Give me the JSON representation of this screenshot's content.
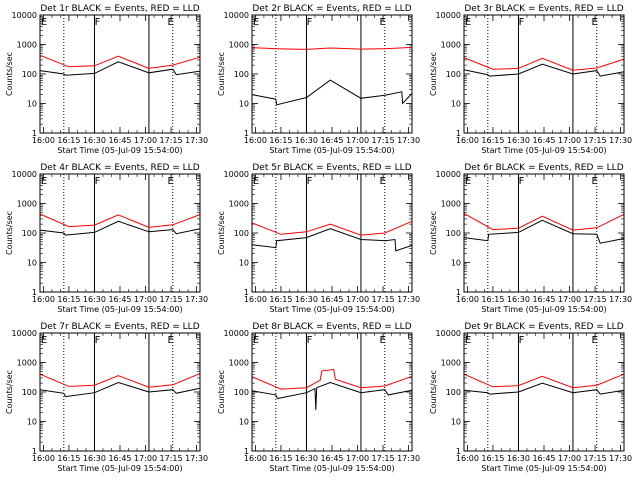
{
  "chart_data": {
    "type": "line",
    "layout": "3x3 grid of panels",
    "x_tick_labels": [
      "16:00",
      "16:15",
      "16:30",
      "16:45",
      "17:00",
      "17:15",
      "17:30"
    ],
    "x_tick_minutes": [
      0,
      15,
      30,
      45,
      60,
      75,
      90
    ],
    "xlabel": "Start Time (05-Jul-09 15:54:00)",
    "ylabel": "Counts/sec",
    "y_scale": "log",
    "ylim": [
      1,
      10000
    ],
    "y_tick_labels": [
      "1",
      "10",
      "100",
      "1000",
      "10000"
    ],
    "x_unit": "minutes after 16:00",
    "xlim": [
      -2,
      92
    ],
    "colors": {
      "events": "#000000",
      "lld": "#ff0000",
      "axis": "#000000",
      "background": "#ffffff"
    },
    "series_names": [
      "BLACK = Events",
      "RED = LLD"
    ],
    "flags": [
      {
        "text": "E",
        "minute": -2
      },
      {
        "text": "F",
        "minute": 30
      },
      {
        "text": "E",
        "minute": 73
      }
    ],
    "solid_vlines_minutes": [
      30,
      62
    ],
    "dotted_vlines_minutes": [
      12,
      76
    ],
    "panels": [
      {
        "title": "Det 1r BLACK = Events, RED = LLD",
        "series": [
          {
            "name": "Events",
            "color": "#000000",
            "x": [
              -2,
              12,
              13,
              30,
              44,
              62,
              76,
              78,
              92
            ],
            "y": [
              130,
              100,
              90,
              105,
              260,
              110,
              145,
              95,
              125
            ]
          },
          {
            "name": "LLD",
            "color": "#ff0000",
            "x": [
              -2,
              15,
              30,
              44,
              62,
              76,
              92
            ],
            "y": [
              430,
              175,
              190,
              400,
              155,
              200,
              370
            ]
          }
        ]
      },
      {
        "title": "Det 2r BLACK = Events, RED = LLD",
        "series": [
          {
            "name": "Events",
            "color": "#000000",
            "x": [
              -2,
              12,
              12.5,
              30,
              44,
              62,
              76,
              86,
              86.5,
              92
            ],
            "y": [
              20,
              14,
              9,
              16,
              62,
              15,
              19,
              25,
              10,
              22
            ]
          },
          {
            "name": "LLD",
            "color": "#ff0000",
            "x": [
              -2,
              15,
              30,
              44,
              62,
              76,
              92
            ],
            "y": [
              780,
              710,
              680,
              760,
              700,
              720,
              800
            ]
          }
        ]
      },
      {
        "title": "Det 3r BLACK = Events, RED = LLD",
        "series": [
          {
            "name": "Events",
            "color": "#000000",
            "x": [
              -2,
              12,
              13,
              30,
              44,
              62,
              76,
              78,
              92
            ],
            "y": [
              140,
              95,
              85,
              100,
              215,
              100,
              130,
              85,
              120
            ]
          },
          {
            "name": "LLD",
            "color": "#ff0000",
            "x": [
              -2,
              15,
              30,
              44,
              62,
              76,
              92
            ],
            "y": [
              360,
              145,
              155,
              340,
              135,
              160,
              320
            ]
          }
        ]
      },
      {
        "title": "Det 4r BLACK = Events, RED = LLD",
        "series": [
          {
            "name": "Events",
            "color": "#000000",
            "x": [
              -2,
              12,
              13,
              30,
              44,
              62,
              76,
              78,
              92
            ],
            "y": [
              125,
              100,
              85,
              105,
              250,
              110,
              130,
              95,
              140
            ]
          },
          {
            "name": "LLD",
            "color": "#ff0000",
            "x": [
              -2,
              15,
              30,
              44,
              62,
              76,
              92
            ],
            "y": [
              440,
              165,
              185,
              410,
              155,
              190,
              420
            ]
          }
        ]
      },
      {
        "title": "Det 5r BLACK = Events, RED = LLD",
        "series": [
          {
            "name": "Events",
            "color": "#000000",
            "x": [
              -2,
              12,
              12.5,
              30,
              44,
              62,
              76,
              82,
              82.5,
              92
            ],
            "y": [
              40,
              32,
              55,
              70,
              140,
              60,
              55,
              60,
              25,
              38
            ]
          },
          {
            "name": "LLD",
            "color": "#ff0000",
            "x": [
              -2,
              15,
              30,
              44,
              62,
              76,
              92
            ],
            "y": [
              220,
              90,
              110,
              200,
              85,
              100,
              250
            ]
          }
        ]
      },
      {
        "title": "Det 6r BLACK = Events, RED = LLD",
        "series": [
          {
            "name": "Events",
            "color": "#000000",
            "x": [
              -2,
              12,
              12.5,
              30,
              44,
              62,
              76,
              78,
              92
            ],
            "y": [
              70,
              55,
              90,
              105,
              270,
              95,
              90,
              45,
              65
            ]
          },
          {
            "name": "LLD",
            "color": "#ff0000",
            "x": [
              -2,
              15,
              30,
              44,
              62,
              76,
              92
            ],
            "y": [
              460,
              130,
              145,
              370,
              125,
              150,
              430
            ]
          }
        ]
      },
      {
        "title": "Det 7r BLACK = Events, RED = LLD",
        "series": [
          {
            "name": "Events",
            "color": "#000000",
            "x": [
              -2,
              12,
              13,
              30,
              44,
              62,
              76,
              78,
              92
            ],
            "y": [
              120,
              90,
              70,
              95,
              210,
              100,
              120,
              90,
              135
            ]
          },
          {
            "name": "LLD",
            "color": "#ff0000",
            "x": [
              -2,
              15,
              30,
              44,
              62,
              76,
              92
            ],
            "y": [
              400,
              155,
              170,
              360,
              145,
              175,
              420
            ]
          }
        ]
      },
      {
        "title": "Det 8r BLACK = Events, RED = LLD",
        "series": [
          {
            "name": "Events",
            "color": "#000000",
            "x": [
              -2,
              12,
              13,
              30,
              35,
              35.5,
              36,
              44,
              62,
              76,
              78,
              92
            ],
            "y": [
              110,
              80,
              60,
              95,
              130,
              25,
              140,
              210,
              95,
              120,
              80,
              115
            ]
          },
          {
            "name": "LLD",
            "color": "#ff0000",
            "x": [
              -2,
              15,
              30,
              38,
              39,
              46,
              47,
              62,
              76,
              92
            ],
            "y": [
              330,
              125,
              140,
              250,
              520,
              580,
              270,
              140,
              160,
              340
            ]
          }
        ]
      },
      {
        "title": "Det 9r BLACK = Events, RED = LLD",
        "series": [
          {
            "name": "Events",
            "color": "#000000",
            "x": [
              -2,
              12,
              13,
              30,
              44,
              62,
              76,
              78,
              92
            ],
            "y": [
              115,
              95,
              85,
              100,
              200,
              95,
              120,
              85,
              115
            ]
          },
          {
            "name": "LLD",
            "color": "#ff0000",
            "x": [
              -2,
              15,
              30,
              44,
              62,
              76,
              92
            ],
            "y": [
              400,
              150,
              165,
              340,
              140,
              170,
              400
            ]
          }
        ]
      }
    ]
  }
}
